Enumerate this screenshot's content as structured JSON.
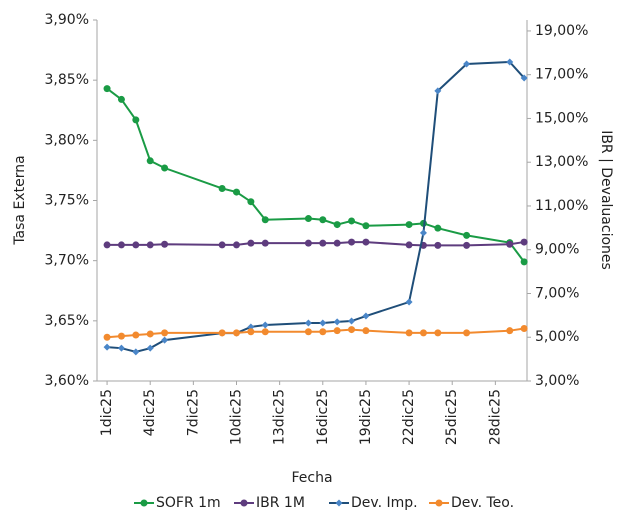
{
  "chart_data": {
    "type": "line",
    "x_label": "Fecha",
    "y_label": "Tasa Externa",
    "y2_label": "IBR | Devaluaciones",
    "x": [
      1,
      2,
      3,
      4,
      5,
      9,
      10,
      11,
      12,
      15,
      16,
      17,
      18,
      19,
      22,
      23,
      24,
      26,
      29,
      30
    ],
    "xlim": [
      0.3,
      30.2
    ],
    "xticks": [
      {
        "value": 1,
        "label": "1dic25"
      },
      {
        "value": 4,
        "label": "4dic25"
      },
      {
        "value": 7,
        "label": "7dic25"
      },
      {
        "value": 10,
        "label": "10dic25"
      },
      {
        "value": 13,
        "label": "13dic25"
      },
      {
        "value": 16,
        "label": "16dic25"
      },
      {
        "value": 19,
        "label": "19dic25"
      },
      {
        "value": 22,
        "label": "22dic25"
      },
      {
        "value": 25,
        "label": "25dic25"
      },
      {
        "value": 28,
        "label": "28dic25"
      }
    ],
    "ylim": [
      3.6,
      3.9
    ],
    "yticks": [
      {
        "value": 3.6,
        "label": "3,60%"
      },
      {
        "value": 3.65,
        "label": "3,65%"
      },
      {
        "value": 3.7,
        "label": "3,70%"
      },
      {
        "value": 3.75,
        "label": "3,75%"
      },
      {
        "value": 3.8,
        "label": "3,80%"
      },
      {
        "value": 3.85,
        "label": "3,85%"
      },
      {
        "value": 3.9,
        "label": "3,90%"
      }
    ],
    "y2lim": [
      3,
      19.5
    ],
    "y2ticks": [
      {
        "value": 3,
        "label": "3,00%"
      },
      {
        "value": 5,
        "label": "5,00%"
      },
      {
        "value": 7,
        "label": "7,00%"
      },
      {
        "value": 9,
        "label": "9,00%"
      },
      {
        "value": 11,
        "label": "11,00%"
      },
      {
        "value": 13,
        "label": "13,00%"
      },
      {
        "value": 15,
        "label": "15,00%"
      },
      {
        "value": 17,
        "label": "17,00%"
      },
      {
        "value": 19,
        "label": "19,00%"
      }
    ],
    "series": [
      {
        "name": "SOFR 1m",
        "color": "#1a9b45",
        "marker": "circle",
        "values": [
          3.843,
          3.834,
          3.817,
          3.783,
          3.777,
          3.76,
          3.757,
          3.749,
          3.734,
          3.735,
          3.734,
          3.73,
          3.733,
          3.729,
          3.73,
          3.731,
          3.727,
          3.721,
          3.715,
          3.699
        ]
      },
      {
        "name": "IBR 1M",
        "color": "#5e3c7e",
        "marker": "circle",
        "axis": "y2",
        "values": [
          9.22,
          9.22,
          9.22,
          9.22,
          9.25,
          9.22,
          9.22,
          9.3,
          9.3,
          9.3,
          9.3,
          9.3,
          9.35,
          9.35,
          9.22,
          9.2,
          9.2,
          9.2,
          9.25,
          9.35
        ]
      },
      {
        "name": "Dev. Imp.",
        "color": "#1f4e79",
        "marker": "diamond",
        "marker_color": "#4a86c8",
        "axis": "y2",
        "values": [
          4.55,
          4.5,
          4.33,
          4.5,
          4.87,
          5.19,
          5.19,
          5.47,
          5.56,
          5.65,
          5.65,
          5.7,
          5.74,
          5.97,
          6.61,
          9.77,
          16.26,
          17.49,
          17.58,
          16.85
        ]
      },
      {
        "name": "Dev. Teo.",
        "color": "#f28a2e",
        "marker": "circle",
        "axis": "y2",
        "values": [
          5.0,
          5.05,
          5.1,
          5.15,
          5.2,
          5.2,
          5.2,
          5.25,
          5.25,
          5.25,
          5.25,
          5.3,
          5.35,
          5.3,
          5.2,
          5.2,
          5.2,
          5.2,
          5.3,
          5.4
        ]
      }
    ]
  }
}
